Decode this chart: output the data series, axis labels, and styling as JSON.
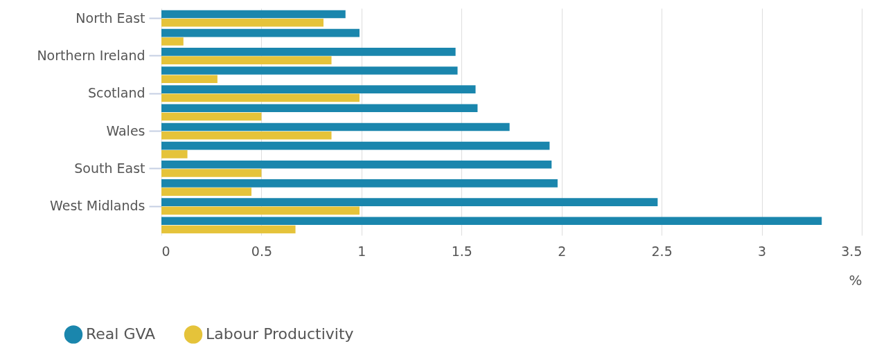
{
  "chart_data": {
    "type": "bar",
    "orientation": "horizontal",
    "xlabel": "%",
    "categories": [
      "North East",
      null,
      "Northern Ireland",
      null,
      "Scotland",
      null,
      "Wales",
      null,
      "South East",
      null,
      "West Midlands",
      null
    ],
    "series": [
      {
        "name": "Real GVA",
        "color": "#1a86ad",
        "values": [
          0.92,
          0.99,
          1.47,
          1.48,
          1.57,
          1.58,
          1.74,
          1.94,
          1.95,
          1.98,
          2.48,
          3.3
        ]
      },
      {
        "name": "Labour Productivity",
        "color": "#e5c33a",
        "values": [
          0.81,
          0.11,
          0.85,
          0.28,
          0.99,
          0.5,
          0.85,
          0.13,
          0.5,
          0.45,
          0.99,
          0.67
        ]
      }
    ],
    "xlim": [
      0,
      3.5
    ],
    "xticks": [
      0,
      0.5,
      1,
      1.5,
      2,
      2.5,
      3,
      3.5
    ],
    "grid": "x",
    "legend": "bottom left"
  }
}
